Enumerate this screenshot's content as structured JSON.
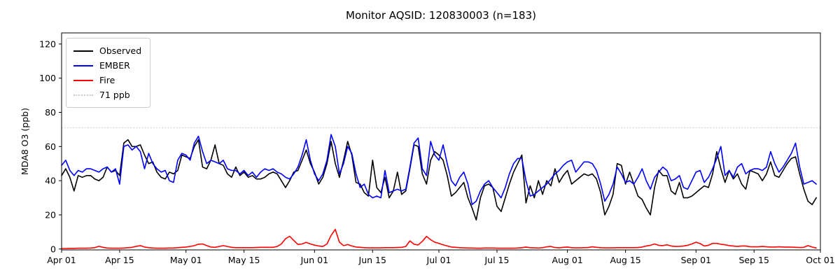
{
  "figure": {
    "title": "Monitor AQSID: 120830003 (n=183)",
    "ylabel": "MDA8 O3 (ppb)"
  },
  "chart_data": {
    "type": "line",
    "title": "Monitor AQSID: 120830003 (n=183)",
    "xlabel": "",
    "ylabel": "MDA8 O3 (ppb)",
    "x_unit": "days since Apr 01 (daily values, Apr 01 - Sep 30)",
    "n_points": 183,
    "xlim": [
      0,
      183
    ],
    "ylim": [
      -0.5,
      126.5
    ],
    "grid": false,
    "legend_position": "upper-left",
    "yticks": [
      0,
      20,
      40,
      60,
      80,
      100,
      120
    ],
    "xticks": {
      "positions": [
        0,
        14,
        30,
        44,
        61,
        75,
        91,
        105,
        122,
        136,
        153,
        167,
        183
      ],
      "labels": [
        "Apr 01",
        "Apr 15",
        "May 01",
        "May 15",
        "Jun 01",
        "Jun 15",
        "Jul 01",
        "Jul 15",
        "Aug 01",
        "Aug 15",
        "Sep 01",
        "Sep 15",
        "Oct 01"
      ]
    },
    "threshold": {
      "value": 71,
      "label": "71 ppb",
      "color": "#c8c8c8",
      "style": "dotted"
    },
    "series": [
      {
        "name": "Observed",
        "color": "#000000",
        "values": [
          43,
          47,
          42,
          34,
          43,
          42,
          43,
          43,
          41,
          40,
          42,
          48,
          45,
          46,
          43,
          62,
          64,
          60,
          60,
          61,
          55,
          50,
          51,
          45,
          42,
          41,
          45,
          44,
          46,
          55,
          54,
          53,
          60,
          64,
          48,
          47,
          52,
          61,
          50,
          49,
          44,
          42,
          48,
          43,
          45,
          42,
          43,
          41,
          41,
          42,
          44,
          45,
          44,
          40,
          36,
          40,
          45,
          46,
          52,
          58,
          50,
          45,
          38,
          42,
          50,
          63,
          50,
          42,
          52,
          63,
          55,
          39,
          38,
          33,
          31,
          52,
          36,
          33,
          42,
          30,
          34,
          45,
          32,
          34,
          47,
          61,
          60,
          44,
          38,
          52,
          57,
          55,
          52,
          43,
          31,
          33,
          36,
          39,
          30,
          24,
          17,
          30,
          37,
          38,
          36,
          25,
          22,
          30,
          38,
          45,
          50,
          55,
          27,
          37,
          30,
          40,
          32,
          40,
          37,
          47,
          39,
          43,
          46,
          38,
          40,
          42,
          44,
          43,
          44,
          41,
          33,
          20,
          25,
          32,
          50,
          49,
          38,
          45,
          38,
          31,
          29,
          24,
          20,
          36,
          46,
          43,
          43,
          34,
          32,
          39,
          30,
          30,
          31,
          33,
          35,
          37,
          36,
          44,
          57,
          47,
          39,
          46,
          41,
          44,
          38,
          35,
          46,
          45,
          44,
          40,
          44,
          51,
          43,
          42,
          46,
          50,
          53,
          54,
          44,
          35,
          28,
          26,
          30
        ]
      },
      {
        "name": "EMBER",
        "color": "#0000ff",
        "values": [
          49,
          52,
          46,
          43,
          46,
          45,
          47,
          47,
          46,
          45,
          47,
          48,
          45,
          47,
          38,
          60,
          61,
          58,
          60,
          57,
          47,
          56,
          50,
          47,
          45,
          46,
          40,
          39,
          52,
          56,
          55,
          52,
          62,
          66,
          57,
          50,
          52,
          51,
          50,
          52,
          47,
          46,
          46,
          44,
          46,
          43,
          45,
          42,
          45,
          47,
          46,
          47,
          45,
          44,
          42,
          41,
          44,
          48,
          55,
          64,
          52,
          44,
          40,
          44,
          52,
          67,
          60,
          44,
          50,
          60,
          56,
          44,
          36,
          38,
          32,
          30,
          31,
          30,
          46,
          33,
          34,
          35,
          34,
          35,
          48,
          62,
          65,
          47,
          43,
          63,
          55,
          52,
          61,
          50,
          40,
          37,
          42,
          45,
          38,
          26,
          28,
          34,
          38,
          40,
          36,
          33,
          30,
          36,
          44,
          50,
          53,
          53,
          40,
          31,
          32,
          34,
          36,
          38,
          41,
          44,
          46,
          49,
          51,
          52,
          45,
          48,
          51,
          51,
          50,
          46,
          38,
          28,
          32,
          38,
          48,
          44,
          39,
          40,
          38,
          42,
          47,
          40,
          35,
          42,
          45,
          48,
          46,
          40,
          41,
          43,
          36,
          35,
          40,
          45,
          46,
          39,
          42,
          47,
          53,
          60,
          43,
          46,
          42,
          48,
          50,
          44,
          46,
          47,
          47,
          46,
          48,
          57,
          50,
          45,
          48,
          52,
          56,
          62,
          48,
          38,
          39,
          40,
          38
        ]
      },
      {
        "name": "Fire",
        "color": "#ff0000",
        "values": [
          0.3,
          0.3,
          0.4,
          0.4,
          0.5,
          0.5,
          0.5,
          0.6,
          0.8,
          1.6,
          1.0,
          0.6,
          0.5,
          0.5,
          0.5,
          0.6,
          0.8,
          1.0,
          1.6,
          2.0,
          1.2,
          0.8,
          0.6,
          0.5,
          0.5,
          0.5,
          0.6,
          0.6,
          0.8,
          1.0,
          1.2,
          1.5,
          2.0,
          2.8,
          3.0,
          2.0,
          1.2,
          1.0,
          1.5,
          2.0,
          1.5,
          1.0,
          0.8,
          0.8,
          0.8,
          0.8,
          0.8,
          0.9,
          1.0,
          1.0,
          1.0,
          1.0,
          1.5,
          3.0,
          6.0,
          7.5,
          5.0,
          2.7,
          3.0,
          3.9,
          3.0,
          2.3,
          1.8,
          1.5,
          3.0,
          8.0,
          11.5,
          4.0,
          2.0,
          2.6,
          1.8,
          1.2,
          1.0,
          0.8,
          0.7,
          0.7,
          0.7,
          0.7,
          0.8,
          0.8,
          0.8,
          0.9,
          1.0,
          1.5,
          4.8,
          2.8,
          2.4,
          4.5,
          7.4,
          5.5,
          4.0,
          3.3,
          2.5,
          1.8,
          1.2,
          1.0,
          0.8,
          0.7,
          0.6,
          0.6,
          0.5,
          0.5,
          0.6,
          0.6,
          0.6,
          0.5,
          0.5,
          0.5,
          0.5,
          0.5,
          0.6,
          0.8,
          1.2,
          0.8,
          0.7,
          0.6,
          0.8,
          1.3,
          1.5,
          0.9,
          0.7,
          1.0,
          1.2,
          0.8,
          0.7,
          0.7,
          0.8,
          0.9,
          1.3,
          1.0,
          0.8,
          0.7,
          0.7,
          0.7,
          0.8,
          0.8,
          0.8,
          0.8,
          0.8,
          0.9,
          1.2,
          1.8,
          2.2,
          3.0,
          2.2,
          2.0,
          2.5,
          1.8,
          1.5,
          1.6,
          1.8,
          2.2,
          3.0,
          4.0,
          3.2,
          1.8,
          2.2,
          3.3,
          3.3,
          2.8,
          2.5,
          2.0,
          1.8,
          1.5,
          1.8,
          1.8,
          1.4,
          1.3,
          1.3,
          1.5,
          1.3,
          1.2,
          1.2,
          1.3,
          1.2,
          1.2,
          1.1,
          1.0,
          0.9,
          1.0,
          2.0,
          1.2,
          0.6
        ]
      }
    ]
  }
}
